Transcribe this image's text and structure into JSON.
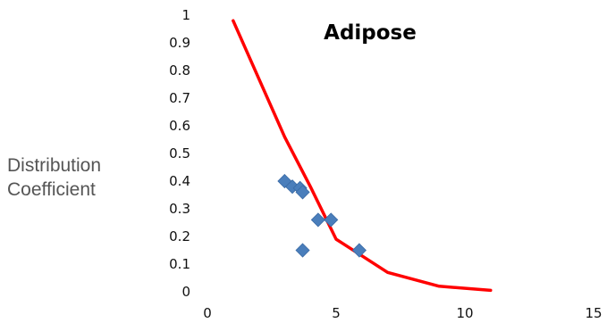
{
  "chart_data": {
    "type": "scatter",
    "title": "Adipose",
    "ylabel_lines": [
      "Distribution",
      "Coefficient"
    ],
    "xlabel": "",
    "xlim": [
      0,
      15
    ],
    "ylim": [
      0,
      1
    ],
    "x_ticks": [
      "0",
      "5",
      "10",
      "15"
    ],
    "y_ticks": [
      "0",
      "0.1",
      "0.2",
      "0.3",
      "0.4",
      "0.5",
      "0.6",
      "0.7",
      "0.8",
      "0.9",
      "1"
    ],
    "grid": false,
    "series": [
      {
        "type": "scatter",
        "marker": "diamond",
        "color": "#4a7ebb",
        "points": [
          {
            "x": 3.0,
            "y": 0.4
          },
          {
            "x": 3.3,
            "y": 0.38
          },
          {
            "x": 3.6,
            "y": 0.375
          },
          {
            "x": 3.7,
            "y": 0.36
          },
          {
            "x": 4.3,
            "y": 0.26
          },
          {
            "x": 4.8,
            "y": 0.26
          },
          {
            "x": 3.7,
            "y": 0.15
          },
          {
            "x": 5.9,
            "y": 0.15
          }
        ]
      },
      {
        "type": "line",
        "color": "#ff0000",
        "points": [
          {
            "x": 1.0,
            "y": 0.98
          },
          {
            "x": 2.0,
            "y": 0.77
          },
          {
            "x": 3.0,
            "y": 0.56
          },
          {
            "x": 4.0,
            "y": 0.38
          },
          {
            "x": 5.0,
            "y": 0.19
          },
          {
            "x": 6.0,
            "y": 0.13
          },
          {
            "x": 7.0,
            "y": 0.07
          },
          {
            "x": 9.0,
            "y": 0.02
          },
          {
            "x": 11.0,
            "y": 0.005
          }
        ]
      }
    ]
  }
}
